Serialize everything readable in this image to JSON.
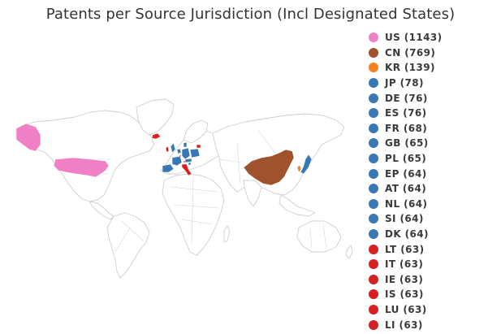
{
  "title": "Patents per Source Jurisdiction (Incl Designated States)",
  "colors": {
    "US": "#f080c6",
    "CN": "#a0522d",
    "KR": "#f4801f",
    "blue": "#3a78b5",
    "red": "#d62021"
  },
  "legend": [
    {
      "label": "US (1143)",
      "color": "#f080c6"
    },
    {
      "label": "CN (769)",
      "color": "#a0522d"
    },
    {
      "label": "KR (139)",
      "color": "#f4801f"
    },
    {
      "label": "JP (78)",
      "color": "#3a78b5"
    },
    {
      "label": "DE (76)",
      "color": "#3a78b5"
    },
    {
      "label": "ES (76)",
      "color": "#3a78b5"
    },
    {
      "label": "FR (68)",
      "color": "#3a78b5"
    },
    {
      "label": "GB (65)",
      "color": "#3a78b5"
    },
    {
      "label": "PL (65)",
      "color": "#3a78b5"
    },
    {
      "label": "EP (64)",
      "color": "#3a78b5"
    },
    {
      "label": "AT (64)",
      "color": "#3a78b5"
    },
    {
      "label": "NL (64)",
      "color": "#3a78b5"
    },
    {
      "label": "SI (64)",
      "color": "#3a78b5"
    },
    {
      "label": "DK (64)",
      "color": "#3a78b5"
    },
    {
      "label": "LT (63)",
      "color": "#d62021"
    },
    {
      "label": "IT (63)",
      "color": "#d62021"
    },
    {
      "label": "IE (63)",
      "color": "#d62021"
    },
    {
      "label": "IS (63)",
      "color": "#d62021"
    },
    {
      "label": "LU (63)",
      "color": "#d62021"
    },
    {
      "label": "LI (63)",
      "color": "#d62021"
    }
  ]
}
